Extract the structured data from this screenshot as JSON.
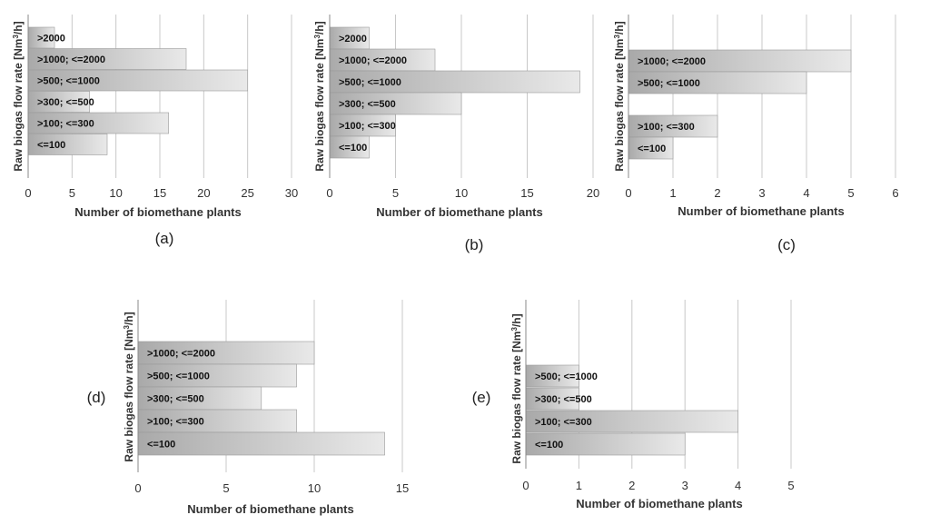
{
  "ylabel_main": "Raw biogas flow rate [Nm",
  "ylabel_sup": "3",
  "ylabel_end": "/h]",
  "xlabel": "Number of biomethane plants",
  "chart_data": [
    {
      "type": "bar",
      "panel": "(a)",
      "categories": [
        ">2000",
        ">1000; <=2000",
        ">500; <=1000",
        ">300; <=500",
        ">100; <=300",
        "<=100"
      ],
      "values": [
        3,
        18,
        25,
        7,
        16,
        9
      ],
      "xlabel": "Number of biomethane plants",
      "ylabel": "Raw biogas flow rate [Nm3/h]",
      "xlim": [
        0,
        30
      ],
      "xticks": [
        0,
        5,
        10,
        15,
        20,
        25,
        30
      ],
      "grid": true
    },
    {
      "type": "bar",
      "panel": "(b)",
      "categories": [
        ">2000",
        ">1000; <=2000",
        ">500; <=1000",
        ">300; <=500",
        ">100; <=300",
        "<=100"
      ],
      "values": [
        3,
        8,
        19,
        10,
        5,
        3
      ],
      "xlabel": "Number of biomethane plants",
      "ylabel": "Raw biogas flow rate [Nm3/h]",
      "xlim": [
        0,
        20
      ],
      "xticks": [
        0,
        5,
        10,
        15,
        20
      ],
      "grid": true
    },
    {
      "type": "bar",
      "panel": "(c)",
      "categories": [
        ">1000; <=2000",
        ">500; <=1000",
        "",
        ">100; <=300",
        "<=100"
      ],
      "values": [
        5,
        4,
        0,
        2,
        1
      ],
      "xlabel": "Number of biomethane plants",
      "ylabel": "Raw biogas flow rate [Nm3/h]",
      "xlim": [
        0,
        6
      ],
      "xticks": [
        0,
        1,
        2,
        3,
        4,
        5,
        6
      ],
      "grid": true
    },
    {
      "type": "bar",
      "panel": "(d)",
      "categories": [
        ">1000; <=2000",
        ">500; <=1000",
        ">300; <=500",
        ">100; <=300",
        "<=100"
      ],
      "values": [
        10,
        9,
        7,
        9,
        14
      ],
      "xlabel": "Number of biomethane plants",
      "ylabel": "Raw biogas flow rate [Nm3/h]",
      "xlim": [
        0,
        15
      ],
      "xticks": [
        0,
        5,
        10,
        15
      ],
      "grid": true
    },
    {
      "type": "bar",
      "panel": "(e)",
      "categories": [
        ">500; <=1000",
        ">300; <=500",
        ">100; <=300",
        "<=100"
      ],
      "values": [
        1,
        1,
        4,
        3
      ],
      "xlabel": "Number of biomethane plants",
      "ylabel": "Raw biogas flow rate [Nm3/h]",
      "xlim": [
        0,
        5
      ],
      "xticks": [
        0,
        1,
        2,
        3,
        4,
        5
      ],
      "grid": true
    }
  ]
}
